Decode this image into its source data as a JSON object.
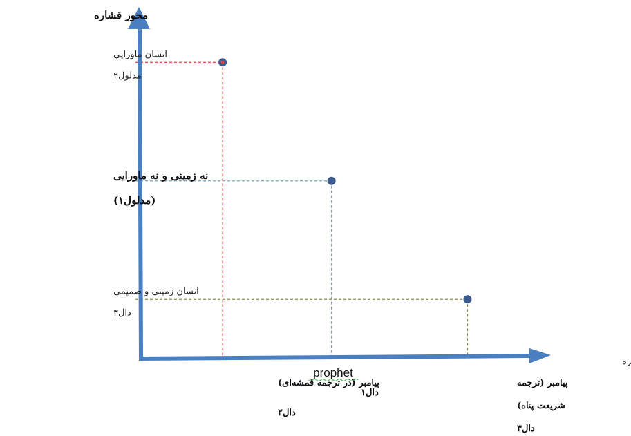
{
  "chart_data": {
    "type": "scatter",
    "title": "",
    "xlabel": "محور گستره",
    "ylabel": "محور قشاره",
    "xlim": [
      0,
      4
    ],
    "ylim": [
      0,
      4
    ],
    "grid": false,
    "x_categories": [
      {
        "x": 0.9,
        "lines": [
          "پیامبر (در ترجمه قمشه‌ای)",
          "دال۲"
        ]
      },
      {
        "x": 2.1,
        "lines": [
          "prophet",
          "دال۱"
        ],
        "first_line_english": true
      },
      {
        "x": 3.6,
        "lines": [
          "پیامبر (ترجمه",
          "شریعت پناه)",
          "دال۳"
        ]
      }
    ],
    "y_categories": [
      {
        "y": 3.5,
        "lines": [
          "انسان ماورایی",
          "مدلول۲"
        ]
      },
      {
        "y": 2.1,
        "lines": [
          "نه زمینی و نه ماورایی",
          "(مدلول۱)"
        ],
        "bold": true
      },
      {
        "y": 0.7,
        "lines": [
          "انسان زمینی و صمیمی",
          "دال۳"
        ]
      }
    ],
    "points": [
      {
        "x": 0.9,
        "y": 3.5,
        "guide_color": "#e8413a"
      },
      {
        "x": 2.1,
        "y": 2.1,
        "guide_color": "#6f9fd0"
      },
      {
        "x": 3.6,
        "y": 0.7,
        "guide_color": "#8f8a4e"
      }
    ],
    "axis_color": "#4a7fc1",
    "point_color": "#3d5a8c"
  }
}
